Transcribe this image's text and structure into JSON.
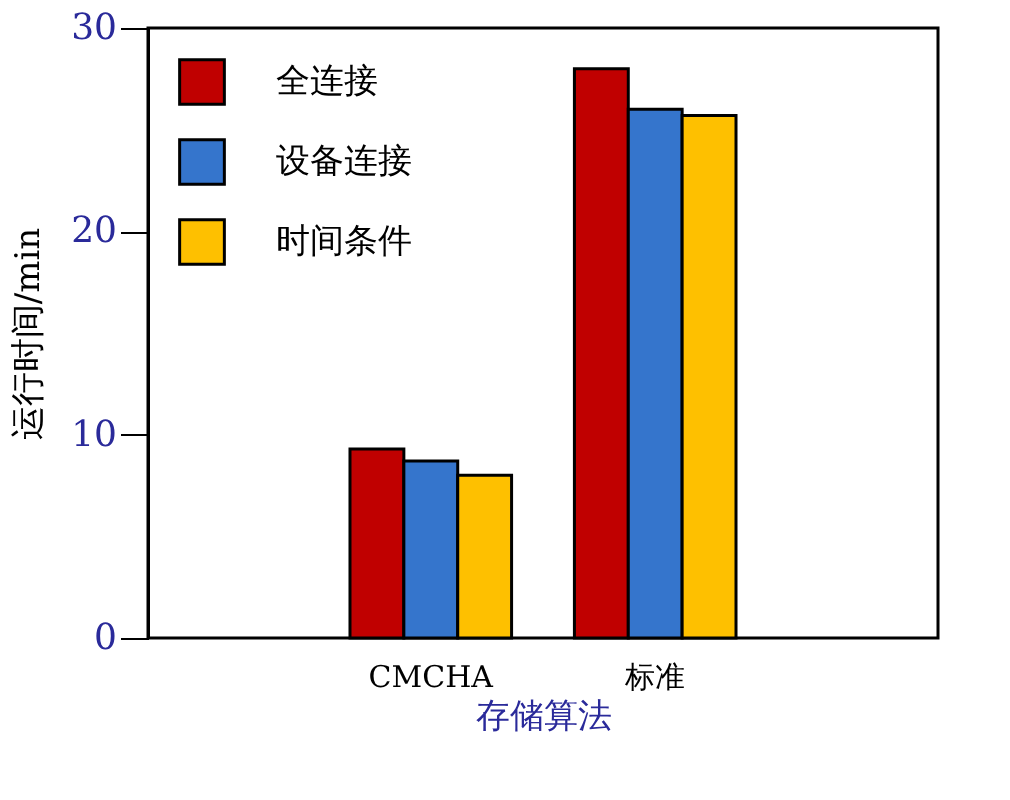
{
  "chart_data": {
    "type": "bar",
    "xlabel": "存储算法",
    "ylabel": "运行时间/min",
    "categories": [
      "CMCHA",
      "标准"
    ],
    "series": [
      {
        "name": "全连接",
        "color": "#c00000",
        "values": [
          9.3,
          28.0
        ]
      },
      {
        "name": "设备连接",
        "color": "#3575cc",
        "values": [
          8.7,
          26.0
        ]
      },
      {
        "name": "时间条件",
        "color": "#fec000",
        "values": [
          8.0,
          25.7
        ]
      }
    ],
    "ylim": [
      0,
      30
    ],
    "yticks": [
      0,
      10,
      20,
      30
    ],
    "grid": false,
    "legend": "top left"
  }
}
